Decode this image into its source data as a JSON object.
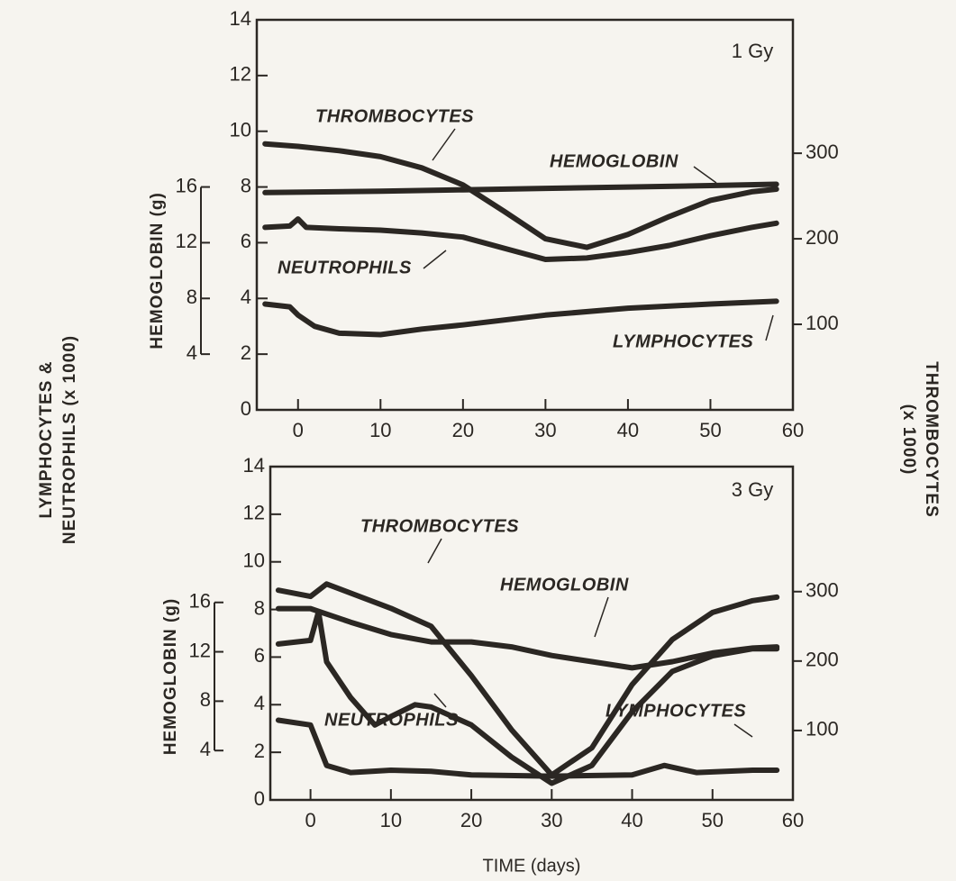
{
  "figure": {
    "ylabel": [
      "LYMPHOCYTES &",
      "NEUTROPHILS (x 1000)"
    ],
    "y2label": [
      "THROMBOCYTES",
      "(x 1000)"
    ],
    "xlabel": "TIME (days)"
  },
  "chart_data": [
    {
      "type": "line",
      "annotation": "1 Gy",
      "xlim": [
        -5,
        60
      ],
      "xticks": [
        0,
        10,
        20,
        30,
        40,
        50,
        60
      ],
      "ylim": [
        0,
        14
      ],
      "yticks": [
        0,
        2,
        4,
        6,
        8,
        10,
        12,
        14
      ],
      "y2lim": [
        0,
        456
      ],
      "y2ticks": [
        100,
        200,
        300
      ],
      "y3label": "HEMOGLOBIN (g)",
      "y3lim": [
        0,
        28
      ],
      "y3ticks": [
        4,
        8,
        12,
        16
      ],
      "series": [
        {
          "name": "THROMBOCYTES",
          "color": "#2b2723",
          "axis": "y2",
          "x": [
            -4,
            0,
            5,
            10,
            15,
            20,
            25,
            30,
            35,
            40,
            45,
            50,
            55,
            58
          ],
          "values": [
            311,
            308,
            303,
            296,
            283,
            263,
            232,
            200,
            190,
            205,
            226,
            245,
            255,
            258
          ]
        },
        {
          "name": "HEMOGLOBIN",
          "color": "#2b2723",
          "axis": "y3",
          "x": [
            -4,
            10,
            20,
            30,
            40,
            50,
            58
          ],
          "values": [
            15.6,
            15.7,
            15.8,
            15.9,
            16.0,
            16.1,
            16.2
          ]
        },
        {
          "name": "NEUTROPHILS",
          "color": "#2b2723",
          "x": [
            -4,
            -1,
            0,
            1,
            5,
            10,
            15,
            20,
            25,
            30,
            35,
            40,
            45,
            50,
            55,
            58
          ],
          "values": [
            6.55,
            6.6,
            6.85,
            6.55,
            6.5,
            6.45,
            6.35,
            6.2,
            5.8,
            5.4,
            5.45,
            5.65,
            5.9,
            6.25,
            6.55,
            6.7
          ]
        },
        {
          "name": "LYMPHOCYTES",
          "color": "#2b2723",
          "x": [
            -4,
            -1,
            0,
            2,
            5,
            10,
            15,
            20,
            30,
            40,
            50,
            58
          ],
          "values": [
            3.8,
            3.7,
            3.4,
            3.0,
            2.75,
            2.7,
            2.9,
            3.05,
            3.4,
            3.65,
            3.8,
            3.9
          ]
        }
      ]
    },
    {
      "type": "line",
      "annotation": "3 Gy",
      "xlim": [
        -5,
        60
      ],
      "xticks": [
        0,
        10,
        20,
        30,
        40,
        50,
        60
      ],
      "ylim": [
        0,
        14
      ],
      "yticks": [
        0,
        2,
        4,
        6,
        8,
        10,
        12,
        14
      ],
      "y2lim": [
        0,
        480
      ],
      "y2ticks": [
        100,
        200,
        300
      ],
      "y3label": "HEMOGLOBIN (g)",
      "y3lim": [
        0,
        27
      ],
      "y3ticks": [
        4,
        8,
        12,
        16
      ],
      "series": [
        {
          "name": "THROMBOCYTES",
          "color": "#2b2723",
          "axis": "y2",
          "x": [
            -4,
            0,
            2,
            10,
            15,
            20,
            25,
            30,
            35,
            40,
            45,
            50,
            55,
            58
          ],
          "values": [
            302,
            293,
            311,
            276,
            250,
            179,
            101,
            36,
            75,
            166,
            231,
            270,
            287,
            292
          ]
        },
        {
          "name": "HEMOGLOBIN",
          "color": "#2b2723",
          "axis": "y3",
          "x": [
            -4,
            0,
            5,
            10,
            15,
            20,
            25,
            30,
            35,
            40,
            45,
            50,
            55,
            58
          ],
          "values": [
            15.5,
            15.5,
            14.4,
            13.4,
            12.8,
            12.8,
            12.4,
            11.7,
            11.2,
            10.7,
            11.2,
            11.9,
            12.3,
            12.4
          ]
        },
        {
          "name": "NEUTROPHILS",
          "color": "#2b2723",
          "x": [
            -4,
            0,
            1,
            2,
            5,
            8,
            10,
            13,
            15,
            20,
            25,
            30,
            35,
            40,
            45,
            50,
            55,
            58
          ],
          "values": [
            6.55,
            6.7,
            7.9,
            5.8,
            4.3,
            3.15,
            3.5,
            4.0,
            3.9,
            3.15,
            1.8,
            0.7,
            1.45,
            3.7,
            5.4,
            6.05,
            6.35,
            6.35
          ]
        },
        {
          "name": "LYMPHOCYTES",
          "color": "#2b2723",
          "x": [
            -4,
            0,
            2,
            5,
            10,
            15,
            20,
            30,
            40,
            44,
            48,
            55,
            58
          ],
          "values": [
            3.35,
            3.15,
            1.45,
            1.15,
            1.25,
            1.2,
            1.05,
            1.0,
            1.05,
            1.45,
            1.15,
            1.25,
            1.25
          ]
        }
      ]
    }
  ]
}
